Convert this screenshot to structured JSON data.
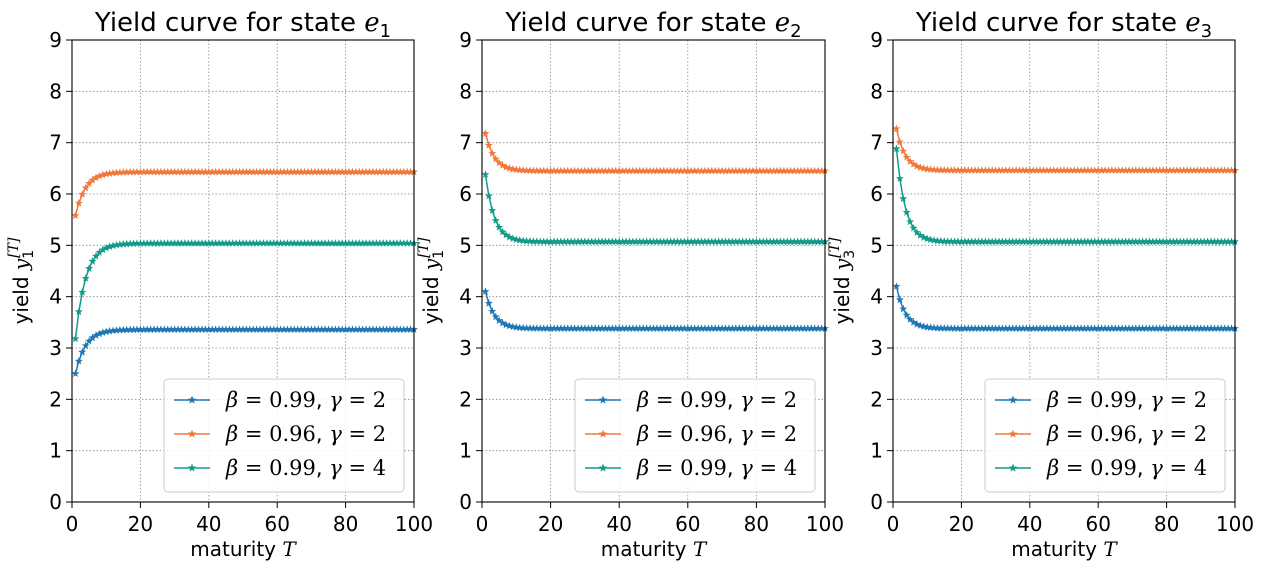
{
  "chart_data": [
    {
      "type": "line",
      "title": "Yield curve for state e1",
      "title_prefix": "Yield curve for state",
      "title_var": "e",
      "title_sub": "1",
      "xlabel": "maturity T",
      "xlabel_text": "maturity",
      "xlabel_var": "T",
      "ylabel": "yield y1[T]",
      "ylabel_text": "yield",
      "ylabel_var": "y",
      "ylabel_sub": "1",
      "ylabel_sup": "[T]",
      "xlim": [
        0,
        100
      ],
      "ylim": [
        0,
        9
      ],
      "xticks": [
        "0",
        "20",
        "40",
        "60",
        "80",
        "100"
      ],
      "yticks": [
        "0",
        "1",
        "2",
        "3",
        "4",
        "5",
        "6",
        "7",
        "8",
        "9"
      ],
      "grid": true,
      "legend_position": "lower-right",
      "series": [
        {
          "name": "β = 0.99, γ = 2",
          "color": "#1f77b4",
          "start": 2.5,
          "steady": 3.36,
          "trend": "rising"
        },
        {
          "name": "β = 0.96, γ = 2",
          "color": "#f0783a",
          "start": 5.58,
          "steady": 6.43,
          "trend": "rising"
        },
        {
          "name": "β = 0.99, γ = 4",
          "color": "#129a8a",
          "start": 3.18,
          "steady": 5.04,
          "trend": "rising"
        }
      ]
    },
    {
      "type": "line",
      "title": "Yield curve for state e2",
      "title_prefix": "Yield curve for state",
      "title_var": "e",
      "title_sub": "2",
      "xlabel": "maturity T",
      "xlabel_text": "maturity",
      "xlabel_var": "T",
      "ylabel": "yield y1[T]",
      "ylabel_text": "yield",
      "ylabel_var": "y",
      "ylabel_sub": "1",
      "ylabel_sup": "[T]",
      "xlim": [
        0,
        100
      ],
      "ylim": [
        0,
        9
      ],
      "xticks": [
        "0",
        "20",
        "40",
        "60",
        "80",
        "100"
      ],
      "yticks": [
        "0",
        "1",
        "2",
        "3",
        "4",
        "5",
        "6",
        "7",
        "8",
        "9"
      ],
      "grid": true,
      "legend_position": "lower-right",
      "series": [
        {
          "name": "β = 0.99, γ = 2",
          "color": "#1f77b4",
          "start": 4.1,
          "steady": 3.38,
          "trend": "falling"
        },
        {
          "name": "β = 0.96, γ = 2",
          "color": "#f0783a",
          "start": 7.18,
          "steady": 6.45,
          "trend": "falling"
        },
        {
          "name": "β = 0.99, γ = 4",
          "color": "#129a8a",
          "start": 6.38,
          "steady": 5.07,
          "trend": "falling"
        }
      ]
    },
    {
      "type": "line",
      "title": "Yield curve for state e3",
      "title_prefix": "Yield curve for state",
      "title_var": "e",
      "title_sub": "3",
      "xlabel": "maturity T",
      "xlabel_text": "maturity",
      "xlabel_var": "T",
      "ylabel": "yield y3[T]",
      "ylabel_text": "yield",
      "ylabel_var": "y",
      "ylabel_sub": "3",
      "ylabel_sup": "[T]",
      "xlim": [
        0,
        100
      ],
      "ylim": [
        0,
        9
      ],
      "xticks": [
        "0",
        "20",
        "40",
        "60",
        "80",
        "100"
      ],
      "yticks": [
        "0",
        "1",
        "2",
        "3",
        "4",
        "5",
        "6",
        "7",
        "8",
        "9"
      ],
      "grid": true,
      "legend_position": "lower-right",
      "series": [
        {
          "name": "β = 0.99, γ = 2",
          "color": "#1f77b4",
          "start": 4.2,
          "steady": 3.38,
          "trend": "falling"
        },
        {
          "name": "β = 0.96, γ = 2",
          "color": "#f0783a",
          "start": 7.27,
          "steady": 6.46,
          "trend": "falling"
        },
        {
          "name": "β = 0.99, γ = 4",
          "color": "#129a8a",
          "start": 6.88,
          "steady": 5.07,
          "trend": "falling"
        }
      ]
    }
  ]
}
